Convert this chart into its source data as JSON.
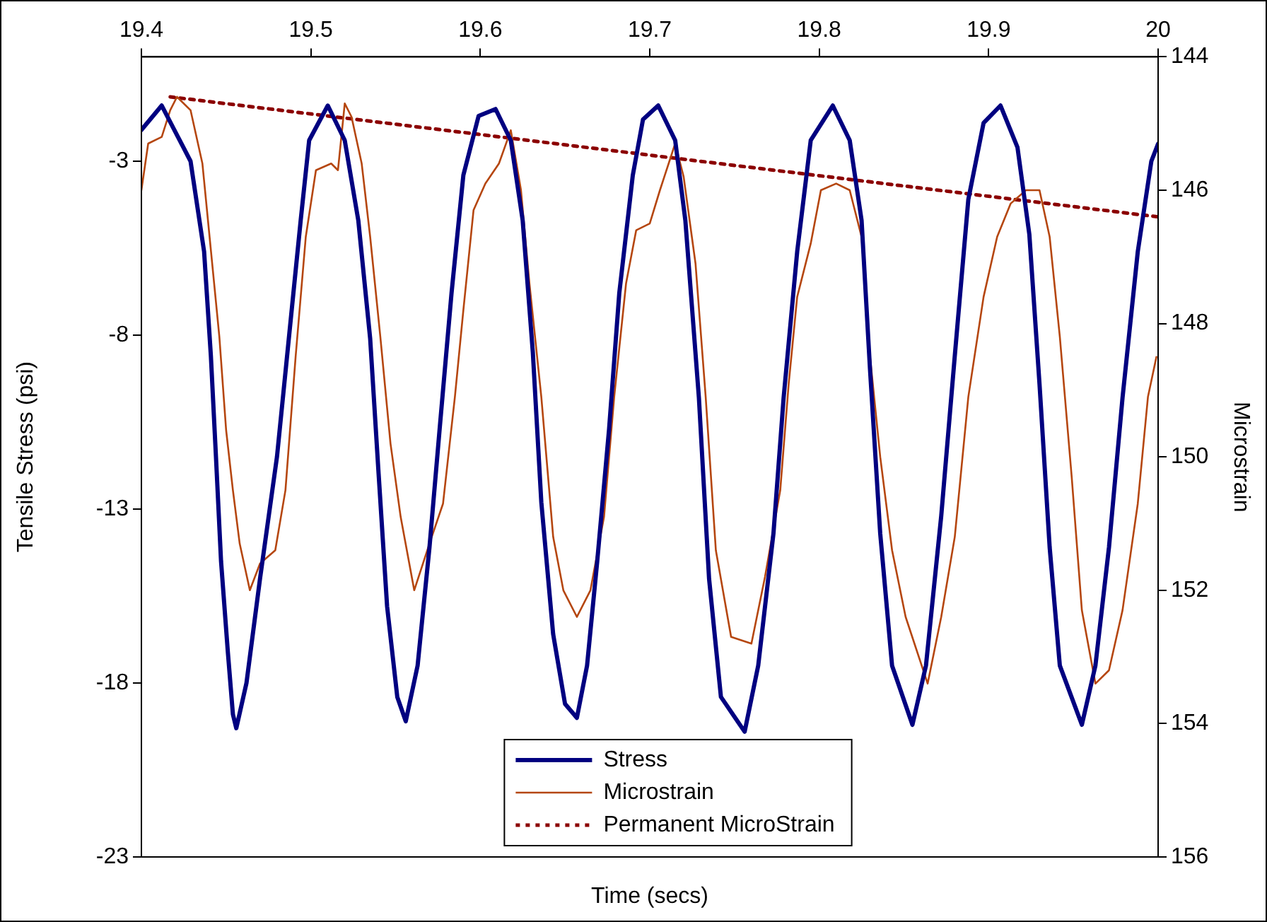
{
  "chart_data": {
    "type": "line",
    "xlabel": "Time (secs)",
    "ylabel": "Tensile Stress (psi)",
    "y2label": "Microstrain",
    "xlim": [
      19.4,
      20
    ],
    "xticks": [
      19.4,
      19.5,
      19.6,
      19.7,
      19.8,
      19.9,
      20
    ],
    "ylim": [
      -23,
      0
    ],
    "yticks": [
      -23,
      -18,
      -13,
      -8,
      -3
    ],
    "y2lim": [
      156,
      144
    ],
    "y2ticks": [
      144,
      146,
      148,
      150,
      152,
      154,
      156
    ],
    "grid": false,
    "legend": "bottom",
    "marker": "none",
    "series": [
      {
        "name": "Stress",
        "color": "#000080",
        "line_style": "solid",
        "x": [
          19.4,
          19.412,
          19.429,
          19.437,
          19.441,
          19.444,
          19.447,
          19.451,
          19.454,
          19.456,
          19.462,
          19.47,
          19.48,
          19.487,
          19.494,
          19.499,
          19.51,
          19.52,
          19.528,
          19.535,
          19.54,
          19.545,
          19.551,
          19.556,
          19.563,
          19.57,
          19.576,
          19.583,
          19.59,
          19.599,
          19.609,
          19.618,
          19.625,
          19.631,
          19.636,
          19.643,
          19.65,
          19.657,
          19.663,
          19.669,
          19.676,
          19.682,
          19.69,
          19.696,
          19.705,
          19.715,
          19.721,
          19.729,
          19.735,
          19.742,
          19.756,
          19.764,
          19.773,
          19.779,
          19.787,
          19.795,
          19.808,
          19.818,
          19.825,
          19.83,
          19.836,
          19.843,
          19.855,
          19.863,
          19.872,
          19.88,
          19.888,
          19.897,
          19.907,
          19.917,
          19.924,
          19.93,
          19.936,
          19.942,
          19.955,
          19.963,
          19.971,
          19.979,
          19.988,
          19.996,
          20
        ],
        "values": [
          -2.1,
          -1.4,
          -3.0,
          -5.6,
          -8.6,
          -11.5,
          -14.5,
          -17.1,
          -18.9,
          -19.3,
          -18.0,
          -15.0,
          -11.5,
          -8.1,
          -4.7,
          -2.4,
          -1.4,
          -2.4,
          -4.7,
          -8.1,
          -12.0,
          -15.8,
          -18.4,
          -19.1,
          -17.5,
          -14.1,
          -10.7,
          -6.8,
          -3.4,
          -1.7,
          -1.5,
          -2.4,
          -4.7,
          -8.5,
          -12.8,
          -16.6,
          -18.6,
          -19.0,
          -17.5,
          -14.5,
          -10.7,
          -6.8,
          -3.4,
          -1.8,
          -1.4,
          -2.4,
          -4.7,
          -9.8,
          -15.0,
          -18.4,
          -19.4,
          -17.5,
          -13.7,
          -9.8,
          -5.6,
          -2.4,
          -1.4,
          -2.4,
          -4.7,
          -9.0,
          -13.7,
          -17.5,
          -19.2,
          -17.5,
          -13.2,
          -8.6,
          -4.1,
          -1.9,
          -1.4,
          -2.6,
          -5.1,
          -9.4,
          -14.1,
          -17.5,
          -19.2,
          -17.5,
          -14.1,
          -9.8,
          -5.6,
          -3.0,
          -2.5
        ]
      },
      {
        "name": "Microstrain",
        "color": "#b5460f",
        "line_style": "solid",
        "axis": "y2",
        "x": [
          19.4,
          19.404,
          19.412,
          19.417,
          19.421,
          19.429,
          19.436,
          19.441,
          19.446,
          19.45,
          19.454,
          19.458,
          19.464,
          19.47,
          19.479,
          19.485,
          19.491,
          19.497,
          19.503,
          19.512,
          19.516,
          19.52,
          19.524,
          19.53,
          19.535,
          19.541,
          19.547,
          19.553,
          19.561,
          19.57,
          19.578,
          19.585,
          19.59,
          19.596,
          19.603,
          19.611,
          19.618,
          19.624,
          19.629,
          19.636,
          19.643,
          19.649,
          19.657,
          19.665,
          19.673,
          19.679,
          19.686,
          19.692,
          19.7,
          19.706,
          19.715,
          19.72,
          19.727,
          19.733,
          19.739,
          19.748,
          19.76,
          19.768,
          19.777,
          19.782,
          19.787,
          19.795,
          19.801,
          19.81,
          19.818,
          19.825,
          19.83,
          19.836,
          19.843,
          19.851,
          19.864,
          19.872,
          19.88,
          19.888,
          19.897,
          19.905,
          19.913,
          19.922,
          19.93,
          19.936,
          19.942,
          19.949,
          19.955,
          19.963,
          19.971,
          19.979,
          19.988,
          19.994,
          19.999
        ],
        "values": [
          146.0,
          145.3,
          145.2,
          144.8,
          144.6,
          144.8,
          145.6,
          146.9,
          148.2,
          149.6,
          150.5,
          151.3,
          152.0,
          151.6,
          151.4,
          150.5,
          148.5,
          146.7,
          145.7,
          145.6,
          145.7,
          144.7,
          144.9,
          145.6,
          146.7,
          148.2,
          149.8,
          150.9,
          152.0,
          151.3,
          150.7,
          149.1,
          147.8,
          146.3,
          145.9,
          145.6,
          145.1,
          146.0,
          147.4,
          149.1,
          151.2,
          152.0,
          152.4,
          152.0,
          150.9,
          149.1,
          147.4,
          146.6,
          146.5,
          146.0,
          145.3,
          145.8,
          147.1,
          149.1,
          151.4,
          152.7,
          152.8,
          151.8,
          150.5,
          148.9,
          147.6,
          146.8,
          146.0,
          145.9,
          146.0,
          146.7,
          148.5,
          150.0,
          151.4,
          152.4,
          153.4,
          152.4,
          151.2,
          149.1,
          147.6,
          146.7,
          146.2,
          146.0,
          146.0,
          146.7,
          148.2,
          150.3,
          152.3,
          153.4,
          153.2,
          152.3,
          150.7,
          149.1,
          148.5
        ]
      },
      {
        "name": "Permanent MicroStrain",
        "color": "#8b0000",
        "line_style": "dotted",
        "axis": "y2",
        "x": [
          19.417,
          20
        ],
        "values": [
          144.6,
          146.4
        ]
      }
    ]
  }
}
